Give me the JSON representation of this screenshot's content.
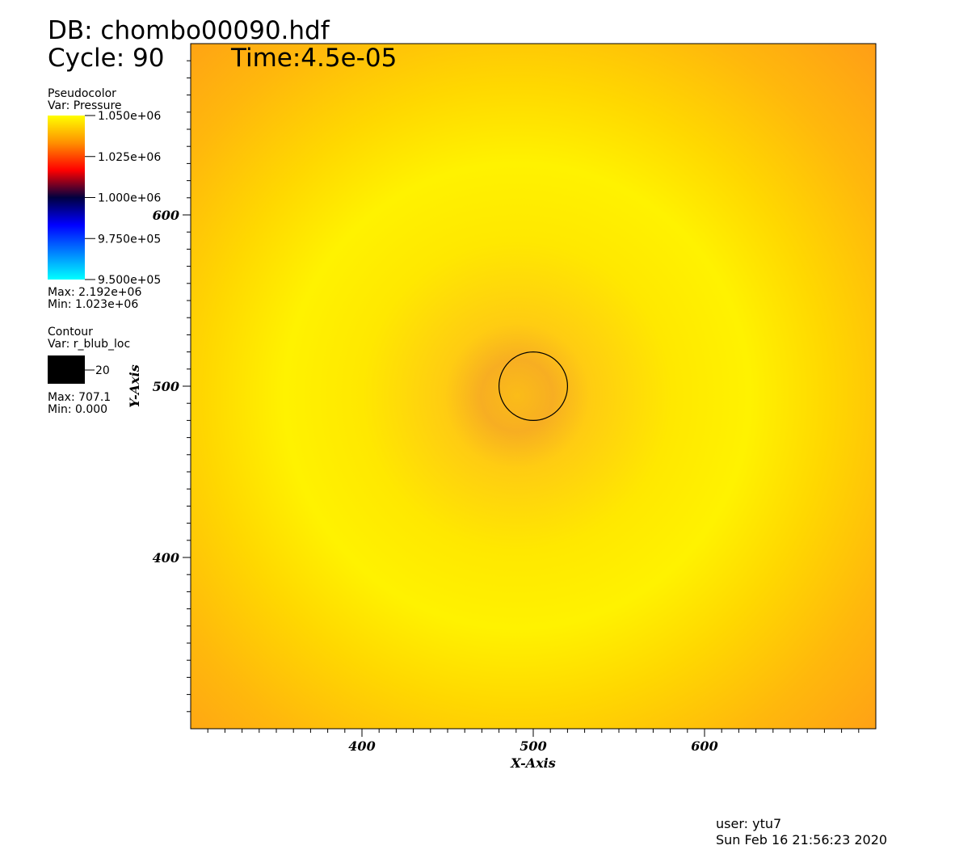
{
  "chart_data": {
    "type": "pseudocolor",
    "db_label": "DB: chombo00090.hdf",
    "cycle_label": "Cycle: 90",
    "time_label": "Time:4.5e-05",
    "x_label": "X-Axis",
    "y_label": "Y-Axis",
    "xlim": [
      300,
      700
    ],
    "ylim": [
      300,
      700
    ],
    "xticks": [
      400,
      500,
      600
    ],
    "yticks": [
      400,
      500,
      600
    ],
    "xminorticks": [
      310,
      320,
      330,
      340,
      350,
      360,
      370,
      380,
      390,
      410,
      420,
      430,
      440,
      450,
      460,
      470,
      480,
      490,
      510,
      520,
      530,
      540,
      550,
      560,
      570,
      580,
      590,
      610,
      620,
      630,
      640,
      650,
      660,
      670,
      680,
      690
    ],
    "yminorticks": [
      310,
      320,
      330,
      340,
      350,
      360,
      370,
      380,
      390,
      410,
      420,
      430,
      440,
      450,
      460,
      470,
      480,
      490,
      510,
      520,
      530,
      540,
      550,
      560,
      570,
      580,
      590,
      610,
      620,
      630,
      640,
      650,
      660,
      670,
      680,
      690
    ],
    "legend": {
      "title": "Pseudocolor",
      "var": "Var: Pressure",
      "colorbar_range": [
        950000,
        1050000
      ],
      "colors": [
        "#00ffff",
        "#0080ff",
        "#0000ff",
        "#000040",
        "#ff0000",
        "#ff9000",
        "#ffff00"
      ],
      "ticks": [
        {
          "value": 1050000,
          "label": "1.050e+06"
        },
        {
          "value": 1025000,
          "label": "1.025e+06"
        },
        {
          "value": 1000000,
          "label": "1.000e+06"
        },
        {
          "value": 975000,
          "label": "9.750e+05"
        },
        {
          "value": 950000,
          "label": "9.500e+05"
        }
      ],
      "max_label": "Max: 2.192e+06",
      "min_label": "Min:  1.023e+06"
    },
    "contour": {
      "title": "Contour",
      "var": "Var: r_blub_loc",
      "level": 20,
      "center": [
        500,
        500
      ],
      "color": "#000000",
      "max_label": "Max: 707.1",
      "min_label": "Min: 0.000"
    },
    "user": "user: ytu7",
    "timestamp": "Sun Feb 16 21:56:23 2020"
  }
}
